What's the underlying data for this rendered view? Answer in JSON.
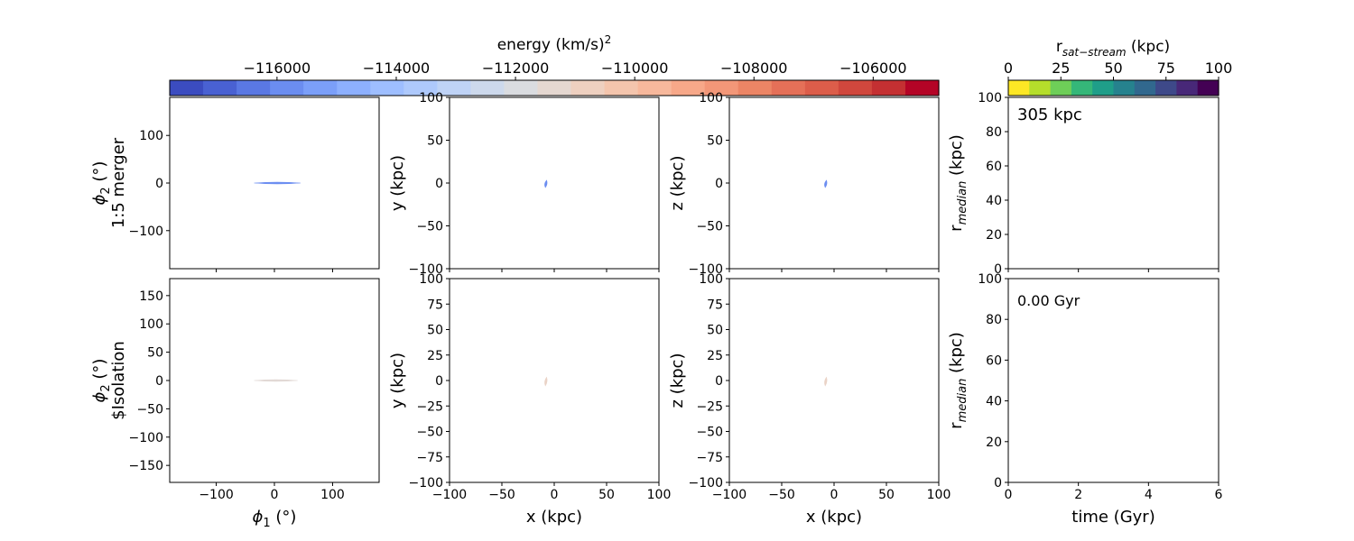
{
  "chart_data": [
    {
      "type": "colorbar",
      "id": "energy-colorbar",
      "label_main": "energy (km/s)",
      "label_sup": "2",
      "range": [
        -117800,
        -104900
      ],
      "ticks": [
        -116000,
        -114000,
        -112000,
        -110000,
        -108000,
        -106000
      ],
      "tick_labels": [
        "−116000",
        "−114000",
        "−112000",
        "−110000",
        "−108000",
        "−106000"
      ],
      "colormap": "coolwarm",
      "colors_low_to_high": [
        "#3b4cc0",
        "#4961d2",
        "#5a78e3",
        "#6b8df0",
        "#7b9ff9",
        "#8db0fe",
        "#9ebeff",
        "#aec9fc",
        "#bfd3f6",
        "#cdd9ec",
        "#dadce0",
        "#e5d8d1",
        "#eed0c0",
        "#f4c5ad",
        "#f7b89c",
        "#f7a889",
        "#f39778",
        "#ec8565",
        "#e57058",
        "#dc5d4a",
        "#d0473d",
        "#c43032",
        "#b40426"
      ]
    },
    {
      "type": "colorbar",
      "id": "r-sat-stream-colorbar",
      "label_main": "r",
      "label_sub": "sat−stream",
      "label_unit": " (kpc)",
      "range": [
        0,
        100
      ],
      "ticks": [
        0,
        25,
        50,
        75,
        100
      ],
      "tick_labels": [
        "0",
        "25",
        "50",
        "75",
        "100"
      ],
      "colormap": "viridis_r",
      "colors_low_to_high": [
        "#fde725",
        "#b5de2b",
        "#6ece58",
        "#35b779",
        "#1f9e89",
        "#26828e",
        "#31688e",
        "#3e4989",
        "#482878",
        "#440154"
      ]
    },
    {
      "type": "scatter",
      "id": "phi-merger",
      "row": "1:5 merger",
      "xlabel": "",
      "ylabel_sym": "ϕ",
      "ylabel_sub": "2",
      "ylabel_unit": " (°)",
      "ylabel_line2": "1:5 merger",
      "xlim": [
        -180,
        180
      ],
      "ylim": [
        -180,
        180
      ],
      "xticks": [
        -100,
        0,
        100
      ],
      "xtick_labels": [],
      "yticks": [
        -100,
        0,
        100
      ],
      "ytick_labels": [
        "−100",
        "0",
        "100"
      ],
      "stream": {
        "x_min": -35,
        "x_max": 45,
        "y_half": 1.6,
        "energy": -116000
      }
    },
    {
      "type": "scatter",
      "id": "xy-merger",
      "row": "1:5 merger",
      "xlabel": "",
      "ylabel": "y (kpc)",
      "xlim": [
        -100,
        100
      ],
      "ylim": [
        -100,
        100
      ],
      "xticks": [
        -100,
        -50,
        0,
        50,
        100
      ],
      "xtick_labels": [],
      "yticks": [
        -100,
        -50,
        0,
        50,
        100
      ],
      "ytick_labels": [
        "−100",
        "−50",
        "0",
        "50",
        "100"
      ],
      "stream": {
        "x": -8,
        "y_min": -5,
        "y_max": 3,
        "energy": -116000
      }
    },
    {
      "type": "scatter",
      "id": "xz-merger",
      "row": "1:5 merger",
      "xlabel": "",
      "ylabel": "z (kpc)",
      "xlim": [
        -100,
        100
      ],
      "ylim": [
        -100,
        100
      ],
      "xticks": [
        -100,
        -50,
        0,
        50,
        100
      ],
      "xtick_labels": [],
      "yticks": [
        -100,
        -50,
        0,
        50,
        100
      ],
      "ytick_labels": [
        "−100",
        "−50",
        "0",
        "50",
        "100"
      ],
      "stream": {
        "x": -8,
        "y_min": -5,
        "y_max": 3,
        "energy": -116000
      }
    },
    {
      "type": "line",
      "id": "rmedian-merger",
      "row": "1:5 merger",
      "xlabel": "",
      "ylabel_main": "r",
      "ylabel_sub": "median",
      "ylabel_unit": " (kpc)",
      "annotation": "305 kpc",
      "xlim": [
        0,
        6
      ],
      "ylim": [
        0,
        100
      ],
      "xticks": [
        0,
        2,
        4,
        6
      ],
      "xtick_labels": [],
      "yticks": [
        0,
        20,
        40,
        60,
        80,
        100
      ],
      "ytick_labels": [
        "0",
        "20",
        "40",
        "60",
        "80",
        "100"
      ],
      "series": []
    },
    {
      "type": "scatter",
      "id": "phi-isolation",
      "row": "$Isolation",
      "xlabel_sym": "ϕ",
      "xlabel_sub": "1",
      "xlabel_unit": " (°)",
      "ylabel_sym": "ϕ",
      "ylabel_sub": "2",
      "ylabel_unit": " (°)",
      "ylabel_line2": "$Isolation",
      "xlim": [
        -180,
        180
      ],
      "ylim": [
        -180,
        180
      ],
      "xticks": [
        -100,
        0,
        100
      ],
      "xtick_labels": [
        "−100",
        "0",
        "100"
      ],
      "yticks": [
        -150,
        -100,
        -50,
        0,
        50,
        100,
        150
      ],
      "ytick_labels": [
        "−150",
        "−100",
        "−50",
        "0",
        "50",
        "100",
        "150"
      ],
      "stream": {
        "x_min": -35,
        "x_max": 40,
        "y_half": 1.3,
        "energy": -111500
      }
    },
    {
      "type": "scatter",
      "id": "xy-isolation",
      "row": "$Isolation",
      "xlabel": "x (kpc)",
      "ylabel": "y (kpc)",
      "xlim": [
        -100,
        100
      ],
      "ylim": [
        -100,
        100
      ],
      "xticks": [
        -100,
        -50,
        0,
        50,
        100
      ],
      "xtick_labels": [
        "−100",
        "−50",
        "0",
        "50",
        "100"
      ],
      "yticks": [
        -100,
        -75,
        -50,
        -25,
        0,
        25,
        50,
        75,
        100
      ],
      "ytick_labels": [
        "−100",
        "−75",
        "−50",
        "−25",
        "0",
        "25",
        "50",
        "75",
        "100"
      ],
      "stream": {
        "x": -8,
        "y_min": -5,
        "y_max": 3,
        "energy": -111000
      }
    },
    {
      "type": "scatter",
      "id": "xz-isolation",
      "row": "$Isolation",
      "xlabel": "x (kpc)",
      "ylabel": "z (kpc)",
      "xlim": [
        -100,
        100
      ],
      "ylim": [
        -100,
        100
      ],
      "xticks": [
        -100,
        -50,
        0,
        50,
        100
      ],
      "xtick_labels": [
        "−100",
        "−50",
        "0",
        "50",
        "100"
      ],
      "yticks": [
        -100,
        -75,
        -50,
        -25,
        0,
        25,
        50,
        75,
        100
      ],
      "ytick_labels": [
        "−100",
        "−75",
        "−50",
        "−25",
        "0",
        "25",
        "50",
        "75",
        "100"
      ],
      "stream": {
        "x": -8,
        "y_min": -5,
        "y_max": 3,
        "energy": -111000
      }
    },
    {
      "type": "line",
      "id": "rmedian-isolation",
      "row": "$Isolation",
      "xlabel": "time (Gyr)",
      "ylabel_main": "r",
      "ylabel_sub": "median",
      "ylabel_unit": " (kpc)",
      "annotation": "0.00 Gyr",
      "xlim": [
        0,
        6
      ],
      "ylim": [
        0,
        100
      ],
      "xticks": [
        0,
        2,
        4,
        6
      ],
      "xtick_labels": [
        "0",
        "2",
        "4",
        "6"
      ],
      "yticks": [
        0,
        20,
        40,
        60,
        80,
        100
      ],
      "ytick_labels": [
        "0",
        "20",
        "40",
        "60",
        "80",
        "100"
      ],
      "series": []
    }
  ]
}
